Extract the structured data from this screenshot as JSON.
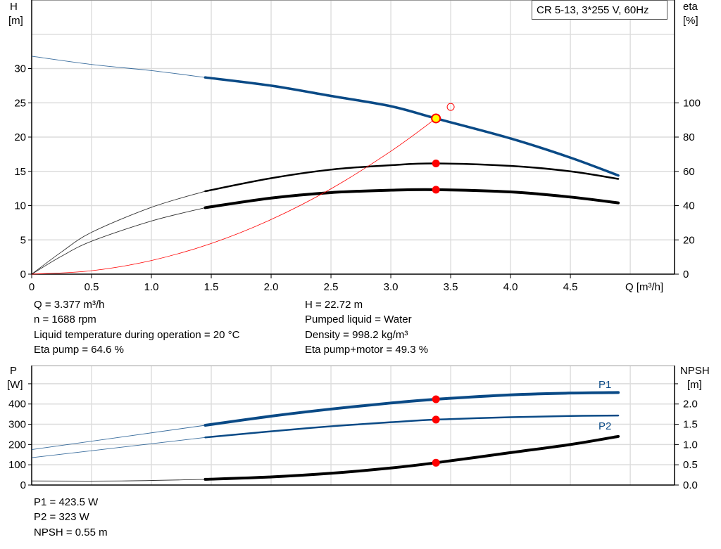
{
  "legend_box": "CR 5-13, 3*255 V, 60Hz",
  "colors": {
    "pump_curve": "#0a4a86",
    "efficiency": "#000000",
    "system_curve": "#ff0000",
    "marker": "#ff0000",
    "duty_marker_fill": "#ffff00",
    "grid": "#d0d0d0"
  },
  "chart_data": [
    {
      "type": "line",
      "xlabel": "Q [m³/h]",
      "ylabel_left": [
        "H",
        "[m]"
      ],
      "ylabel_right": [
        "eta",
        "[%]"
      ],
      "xlim": [
        0,
        5.37
      ],
      "ylim_left": [
        0,
        40
      ],
      "ylim_right": [
        0,
        160
      ],
      "x_ticks": [
        "0",
        "0.5",
        "1.0",
        "1.5",
        "2.0",
        "2.5",
        "3.0",
        "3.5",
        "4.0",
        "4.5"
      ],
      "y_ticks_left": [
        "0",
        "5",
        "10",
        "15",
        "20",
        "25",
        "30"
      ],
      "y_ticks_right": [
        "0",
        "20",
        "40",
        "60",
        "80",
        "100"
      ],
      "grid": true,
      "series": [
        {
          "key": "H",
          "axis": "left",
          "color": "#0a4a86",
          "thick_from": 1.45,
          "x": [
            0,
            0.5,
            1.0,
            1.45,
            2.0,
            2.5,
            3.0,
            3.377,
            4.0,
            4.5,
            4.9
          ],
          "y": [
            31.8,
            30.6,
            29.7,
            28.7,
            27.5,
            26.0,
            24.5,
            22.72,
            19.8,
            17.0,
            14.4
          ]
        },
        {
          "key": "eta_pump",
          "axis": "right",
          "color": "#000000",
          "thick_from": 1.45,
          "x": [
            0,
            0.25,
            0.5,
            1.0,
            1.45,
            2.0,
            2.5,
            3.0,
            3.377,
            4.0,
            4.5,
            4.9
          ],
          "y": [
            0,
            13,
            24.4,
            39,
            48.4,
            56,
            61,
            63.6,
            64.6,
            63.2,
            60,
            55.6
          ]
        },
        {
          "key": "eta_pump_motor",
          "axis": "right",
          "color": "#000000",
          "thick_from": 1.45,
          "x": [
            0,
            0.25,
            0.5,
            1.0,
            1.45,
            2.0,
            2.5,
            3.0,
            3.377,
            4.0,
            4.5,
            4.9
          ],
          "y": [
            0,
            10.5,
            19.2,
            31,
            38.8,
            44.4,
            47.6,
            49,
            49.3,
            48,
            45,
            41.6
          ]
        },
        {
          "key": "system",
          "axis": "left",
          "color": "#ff0000",
          "x": [
            0,
            0.5,
            1.0,
            1.5,
            2.0,
            2.5,
            3.0,
            3.377
          ],
          "y": [
            0,
            0.5,
            1.99,
            4.48,
            7.97,
            12.45,
            17.93,
            22.72
          ]
        }
      ],
      "markers": [
        {
          "x": 3.377,
          "y": 22.72,
          "axis": "left",
          "style": "duty"
        },
        {
          "x": 3.377,
          "y": 64.6,
          "axis": "right",
          "style": "dot"
        },
        {
          "x": 3.377,
          "y": 49.3,
          "axis": "right",
          "style": "dot"
        },
        {
          "x": 3.5,
          "y": 24.4,
          "axis": "left",
          "style": "hollow"
        }
      ]
    },
    {
      "type": "line",
      "ylabel_left": [
        "P",
        "[W]"
      ],
      "ylabel_right": [
        "NPSH",
        "[m]"
      ],
      "xlim": [
        0,
        5.37
      ],
      "ylim_left": [
        0,
        590
      ],
      "ylim_right": [
        0,
        2.95
      ],
      "y_ticks_left": [
        "0",
        "100",
        "200",
        "300",
        "400"
      ],
      "y_ticks_right": [
        "0.0",
        "0.5",
        "1.0",
        "1.5",
        "2.0"
      ],
      "grid": true,
      "series": [
        {
          "key": "P1",
          "name": "P1",
          "axis": "left",
          "color": "#0a4a86",
          "thick_from": 1.45,
          "x": [
            0,
            1.45,
            2.0,
            2.5,
            3.0,
            3.377,
            4.0,
            4.5,
            4.9
          ],
          "y": [
            175,
            295,
            340,
            375,
            405,
            423.5,
            445,
            454,
            457
          ]
        },
        {
          "key": "P2",
          "name": "P2",
          "axis": "left",
          "color": "#0a4a86",
          "thick_from": 1.45,
          "x": [
            0,
            1.45,
            2.0,
            2.5,
            3.0,
            3.377,
            4.0,
            4.5,
            4.9
          ],
          "y": [
            135,
            235,
            265,
            290,
            310,
            323,
            335,
            341,
            343
          ]
        },
        {
          "key": "NPSH",
          "axis": "right",
          "color": "#000000",
          "thick_from": 1.45,
          "x": [
            0,
            0.75,
            1.45,
            2.0,
            2.5,
            3.0,
            3.377,
            4.0,
            4.5,
            4.9
          ],
          "y": [
            0.1,
            0.1,
            0.14,
            0.2,
            0.29,
            0.42,
            0.55,
            0.8,
            1.0,
            1.2
          ]
        }
      ],
      "markers": [
        {
          "x": 3.377,
          "y": 423.5,
          "axis": "left",
          "style": "dot"
        },
        {
          "x": 3.377,
          "y": 323,
          "axis": "left",
          "style": "dot"
        },
        {
          "x": 3.377,
          "y": 0.55,
          "axis": "right",
          "style": "dot"
        }
      ]
    }
  ],
  "info_top_left": [
    "Q = 3.377 m³/h",
    "n = 1688 rpm",
    "Liquid temperature during operation = 20 °C",
    "Eta pump = 64.6 %"
  ],
  "info_top_right": [
    "H = 22.72 m",
    "Pumped liquid = Water",
    "Density = 998.2 kg/m³",
    "Eta pump+motor = 49.3 %"
  ],
  "info_bottom": [
    "P1 = 423.5 W",
    "P2 = 323 W",
    "NPSH = 0.55 m"
  ]
}
